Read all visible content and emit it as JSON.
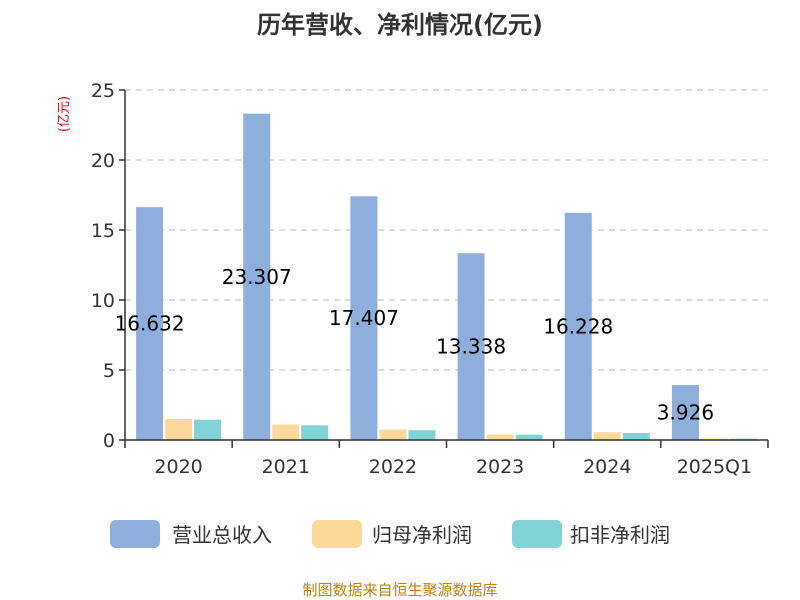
{
  "chart_data": {
    "type": "bar",
    "title": "历年营收、净利情况(亿元)",
    "ylabel": "(亿元)",
    "categories": [
      "2020",
      "2021",
      "2022",
      "2023",
      "2024",
      "2025Q1"
    ],
    "ylim": [
      0,
      25
    ],
    "yticks": [
      0,
      5,
      10,
      15,
      20,
      25
    ],
    "grid": true,
    "legend_position": "bottom",
    "series": [
      {
        "name": "营业总收入",
        "color": "#8eaedb",
        "values": [
          16.632,
          23.307,
          17.407,
          13.338,
          16.228,
          3.926
        ]
      },
      {
        "name": "归母净利润",
        "color": "#fdd998",
        "values": [
          1.5,
          1.1,
          0.75,
          0.4,
          0.55,
          0.12
        ]
      },
      {
        "name": "扣非净利润",
        "color": "#80d4d6",
        "values": [
          1.45,
          1.05,
          0.7,
          0.38,
          0.5,
          0.1
        ]
      }
    ],
    "data_labels": [
      "16.632",
      "23.307",
      "17.407",
      "13.338",
      "16.228",
      "3.926"
    ]
  },
  "source": "制图数据来自恒生聚源数据库"
}
